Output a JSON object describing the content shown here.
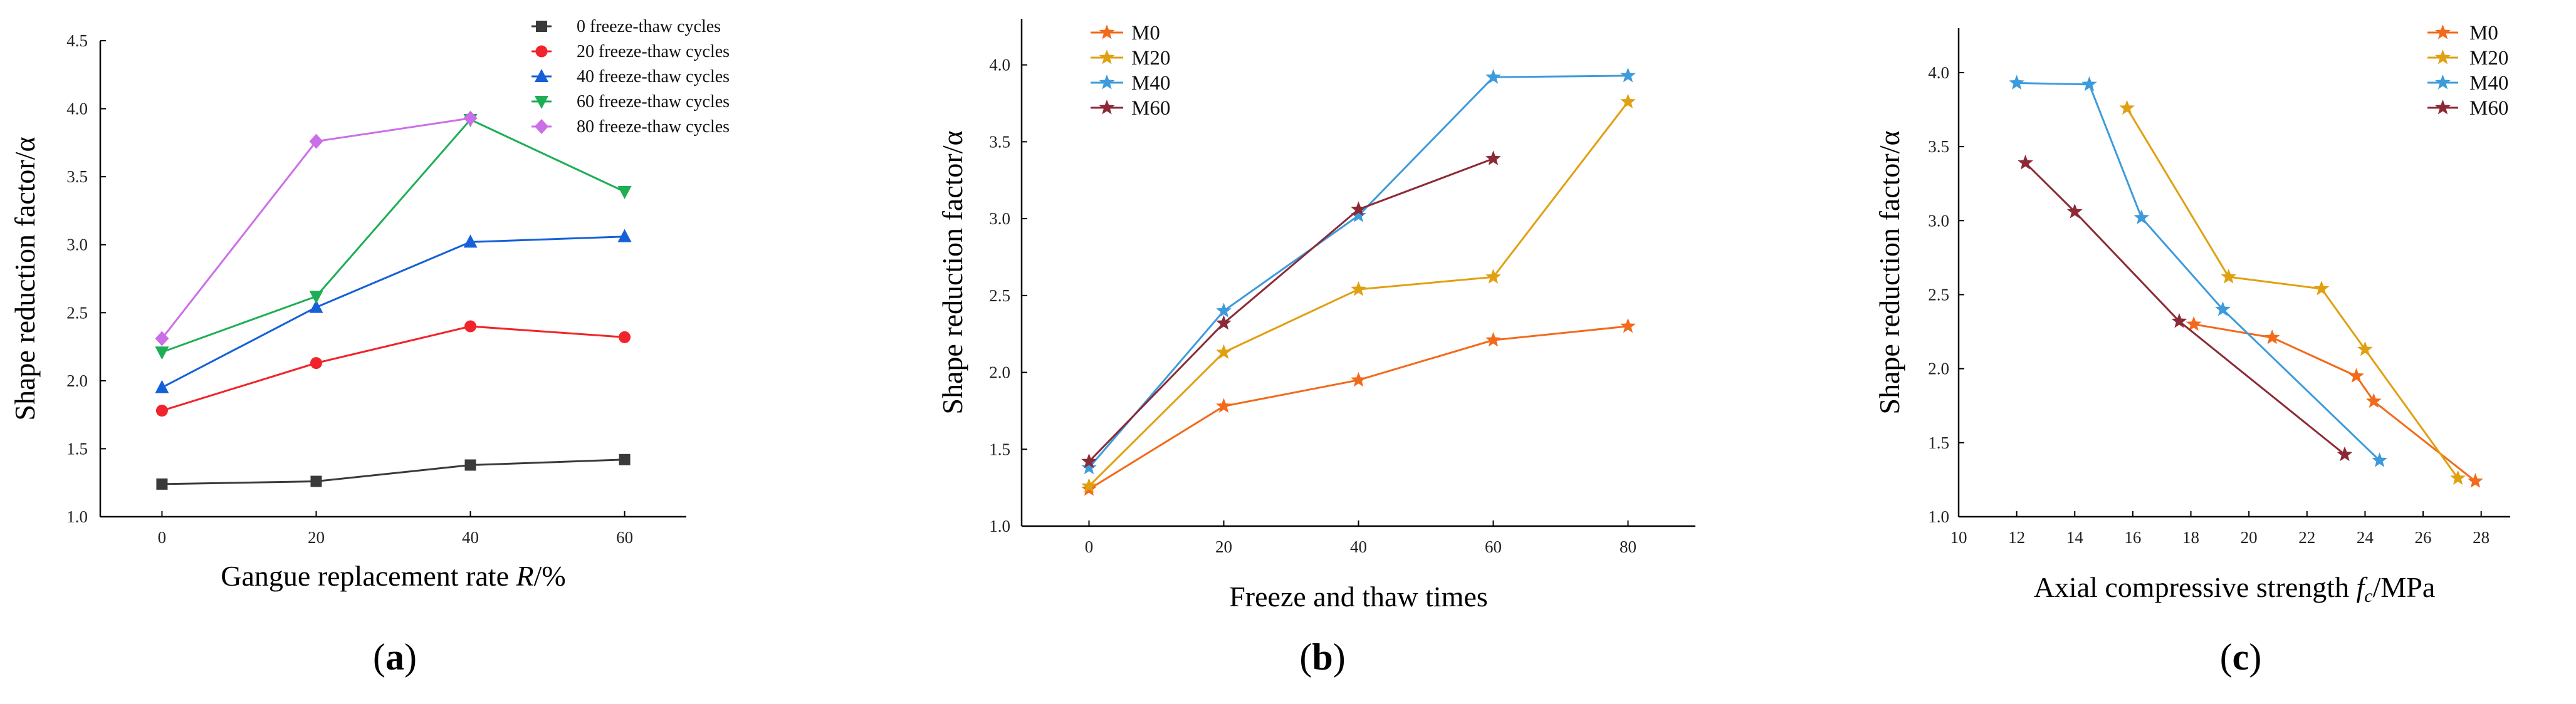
{
  "chart_data": [
    {
      "id": "a",
      "type": "line",
      "caption": "a",
      "xlabel": "Gangue replacement rate R/%",
      "xlabel_main": "Gangue replacement rate ",
      "xlabel_italic": "R",
      "xlabel_unit": "/%",
      "ylabel": "Shape reduction factor/α",
      "xlim": [
        -8,
        68
      ],
      "ylim": [
        1.0,
        4.5
      ],
      "xticks": [
        0,
        20,
        40,
        60
      ],
      "yticks": [
        1.0,
        1.5,
        2.0,
        2.5,
        3.0,
        3.5,
        4.0,
        4.5
      ],
      "ytick_labels": [
        "1.0",
        "1.5",
        "2.0",
        "2.5",
        "3.0",
        "3.5",
        "4.0",
        "4.5"
      ],
      "legend_position": "top-right",
      "series": [
        {
          "name": "0 freeze-thaw cycles",
          "color": "#3a3a3a",
          "marker": "square",
          "x": [
            0,
            20,
            40,
            60
          ],
          "y": [
            1.24,
            1.26,
            1.38,
            1.42
          ]
        },
        {
          "name": "20 freeze-thaw cycles",
          "color": "#f0242a",
          "marker": "circle",
          "x": [
            0,
            20,
            40,
            60
          ],
          "y": [
            1.78,
            2.13,
            2.4,
            2.32
          ]
        },
        {
          "name": "40 freeze-thaw cycles",
          "color": "#1460d8",
          "marker": "triangle-up",
          "x": [
            0,
            20,
            40,
            60
          ],
          "y": [
            1.95,
            2.54,
            3.02,
            3.06
          ]
        },
        {
          "name": "60 freeze-thaw cycles",
          "color": "#1eae55",
          "marker": "triangle-down",
          "x": [
            0,
            20,
            40,
            60
          ],
          "y": [
            2.21,
            2.62,
            3.92,
            3.39
          ]
        },
        {
          "name": "80 freeze-thaw cycles",
          "color": "#cc6ee8",
          "marker": "diamond",
          "x": [
            0,
            20,
            40,
            60
          ],
          "y": [
            2.31,
            3.76,
            3.93,
            null
          ]
        }
      ]
    },
    {
      "id": "b",
      "type": "line",
      "caption": "b",
      "xlabel": "Freeze and thaw times",
      "ylabel": "Shape reduction factor/α",
      "xlim": [
        -10,
        90
      ],
      "ylim": [
        1.0,
        4.3
      ],
      "xticks": [
        0,
        20,
        40,
        60,
        80
      ],
      "yticks": [
        1.0,
        1.5,
        2.0,
        2.5,
        3.0,
        3.5,
        4.0
      ],
      "ytick_labels": [
        "1.0",
        "1.5",
        "2.0",
        "2.5",
        "3.0",
        "3.5",
        "4.0"
      ],
      "legend_position": "top-left",
      "series": [
        {
          "name": "M0",
          "color": "#f26a1b",
          "marker": "star",
          "x": [
            0,
            20,
            40,
            60,
            80
          ],
          "y": [
            1.24,
            1.78,
            1.95,
            2.21,
            2.3
          ]
        },
        {
          "name": "M20",
          "color": "#e0a010",
          "marker": "star",
          "x": [
            0,
            20,
            40,
            60,
            80
          ],
          "y": [
            1.26,
            2.13,
            2.54,
            2.62,
            3.76
          ]
        },
        {
          "name": "M40",
          "color": "#3d9bdc",
          "marker": "star",
          "x": [
            0,
            20,
            40,
            60,
            80
          ],
          "y": [
            1.38,
            2.4,
            3.02,
            3.92,
            3.93
          ]
        },
        {
          "name": "M60",
          "color": "#8b2a36",
          "marker": "star",
          "x": [
            0,
            20,
            40,
            60
          ],
          "y": [
            1.42,
            2.32,
            3.06,
            3.39
          ]
        }
      ]
    },
    {
      "id": "c",
      "type": "line",
      "caption": "c",
      "xlabel": "Axial compressive strength fc/MPa",
      "xlabel_main": "Axial compressive strength ",
      "xlabel_italic": "f",
      "xlabel_sub": "c",
      "xlabel_unit": "/MPa",
      "ylabel": "Shape reduction factor/α",
      "xlim": [
        10,
        29
      ],
      "ylim": [
        1.0,
        4.3
      ],
      "xticks": [
        10,
        12,
        14,
        16,
        18,
        20,
        22,
        24,
        26,
        28
      ],
      "yticks": [
        1.0,
        1.5,
        2.0,
        2.5,
        3.0,
        3.5,
        4.0
      ],
      "ytick_labels": [
        "1.0",
        "1.5",
        "2.0",
        "2.5",
        "3.0",
        "3.5",
        "4.0"
      ],
      "legend_position": "top-right",
      "series": [
        {
          "name": "M0",
          "color": "#f26a1b",
          "marker": "star",
          "x": [
            18.1,
            20.8,
            23.7,
            24.3,
            27.8
          ],
          "y": [
            2.3,
            2.21,
            1.95,
            1.78,
            1.24
          ]
        },
        {
          "name": "M20",
          "color": "#e0a010",
          "marker": "star",
          "x": [
            15.8,
            19.3,
            22.5,
            24.0,
            27.2
          ],
          "y": [
            3.76,
            2.62,
            2.54,
            2.13,
            1.26
          ]
        },
        {
          "name": "M40",
          "color": "#3d9bdc",
          "marker": "star",
          "x": [
            12.0,
            14.5,
            16.3,
            19.1,
            24.5
          ],
          "y": [
            3.93,
            3.92,
            3.02,
            2.4,
            1.38
          ]
        },
        {
          "name": "M60",
          "color": "#8b2a36",
          "marker": "star",
          "x": [
            12.3,
            14.0,
            17.6,
            23.3
          ],
          "y": [
            3.39,
            3.06,
            2.32,
            1.42
          ]
        }
      ]
    }
  ]
}
